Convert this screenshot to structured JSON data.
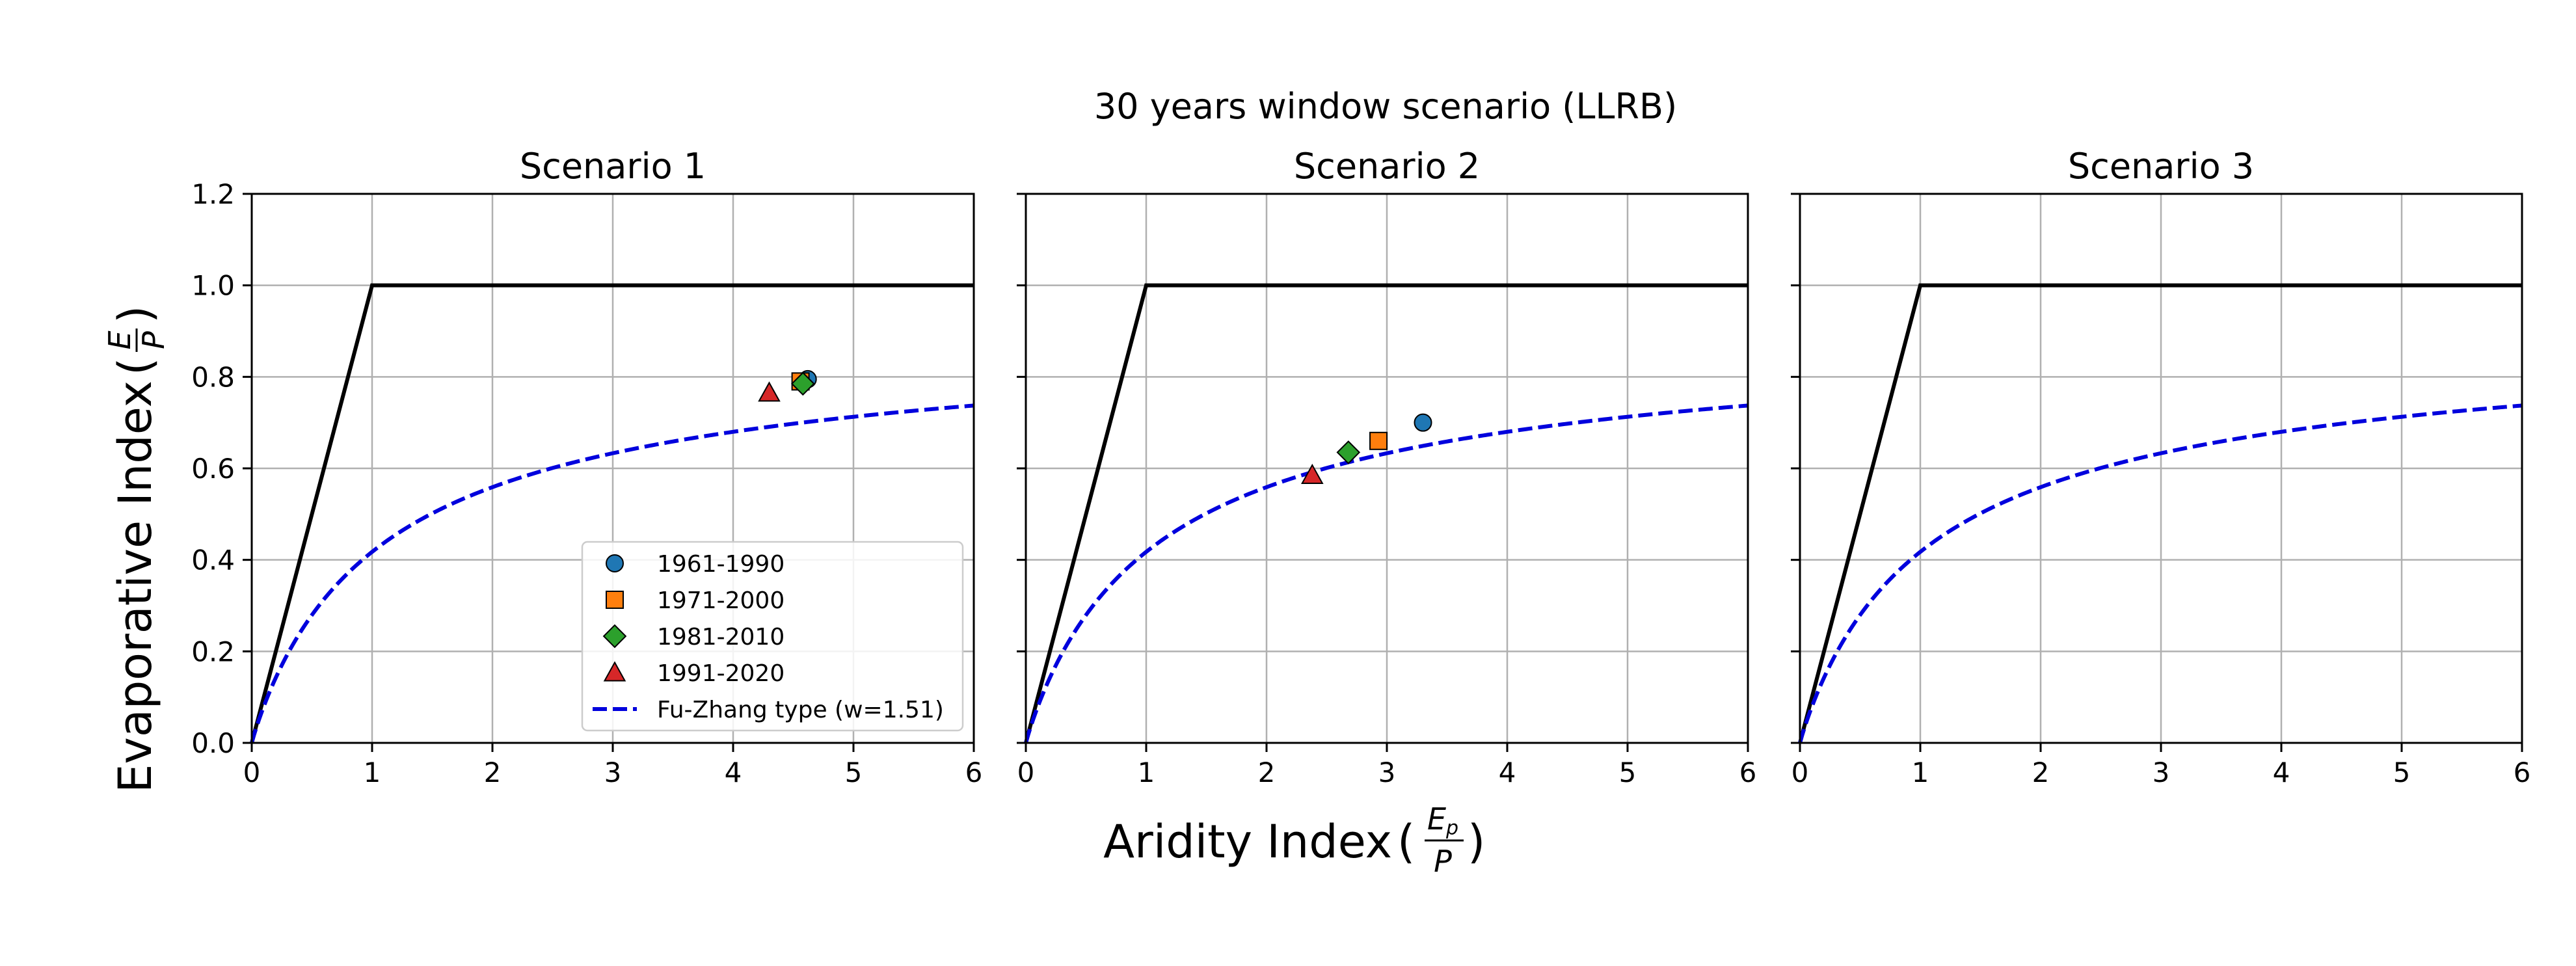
{
  "chart_data": {
    "type": "scatter",
    "suptitle": "30 years window scenario (LLRB)",
    "xlabel": "Aridity Index",
    "xlabel_frac": {
      "num_base": "E",
      "num_sub": "p",
      "den": "P"
    },
    "ylabel": "Evaporative Index",
    "ylabel_frac": {
      "num": "E",
      "den": "P"
    },
    "xlim": [
      0,
      6
    ],
    "ylim": [
      0,
      1.2
    ],
    "xticks": [
      "0",
      "1",
      "2",
      "3",
      "4",
      "5",
      "6"
    ],
    "yticks": [
      "0.0",
      "0.2",
      "0.4",
      "0.6",
      "0.8",
      "1.0",
      "1.2"
    ],
    "grid": true,
    "legend": {
      "placement": "lower-right",
      "entries": [
        {
          "label": "1961-1990",
          "marker": "circle",
          "color": "#1f77b4"
        },
        {
          "label": "1971-2000",
          "marker": "square",
          "color": "#ff7f0e"
        },
        {
          "label": "1981-2010",
          "marker": "diamond",
          "color": "#2ca02c"
        },
        {
          "label": "1991-2020",
          "marker": "triangle",
          "color": "#d62728"
        },
        {
          "label": "Fu-Zhang type (w=1.51)",
          "marker": "dashed-line",
          "color": "#0000dd"
        }
      ]
    },
    "reference_curves": {
      "budyko_limit": {
        "color": "#000000",
        "points": [
          [
            0,
            0
          ],
          [
            1,
            1
          ],
          [
            6,
            1
          ]
        ]
      },
      "fu_zhang": {
        "w": 1.51,
        "color": "#0000dd",
        "style": "dashed"
      }
    },
    "panels": [
      {
        "title": "Scenario 1",
        "show_legend": true,
        "points": [
          {
            "period": "1961-1990",
            "x": 4.62,
            "y": 0.795
          },
          {
            "period": "1971-2000",
            "x": 4.56,
            "y": 0.79
          },
          {
            "period": "1981-2010",
            "x": 4.58,
            "y": 0.785
          },
          {
            "period": "1991-2020",
            "x": 4.3,
            "y": 0.765
          }
        ]
      },
      {
        "title": "Scenario 2",
        "show_legend": false,
        "points": [
          {
            "period": "1961-1990",
            "x": 3.3,
            "y": 0.7
          },
          {
            "period": "1971-2000",
            "x": 2.93,
            "y": 0.66
          },
          {
            "period": "1981-2010",
            "x": 2.68,
            "y": 0.635
          },
          {
            "period": "1991-2020",
            "x": 2.38,
            "y": 0.585
          }
        ]
      },
      {
        "title": "Scenario 3",
        "show_legend": false,
        "points": []
      }
    ]
  }
}
